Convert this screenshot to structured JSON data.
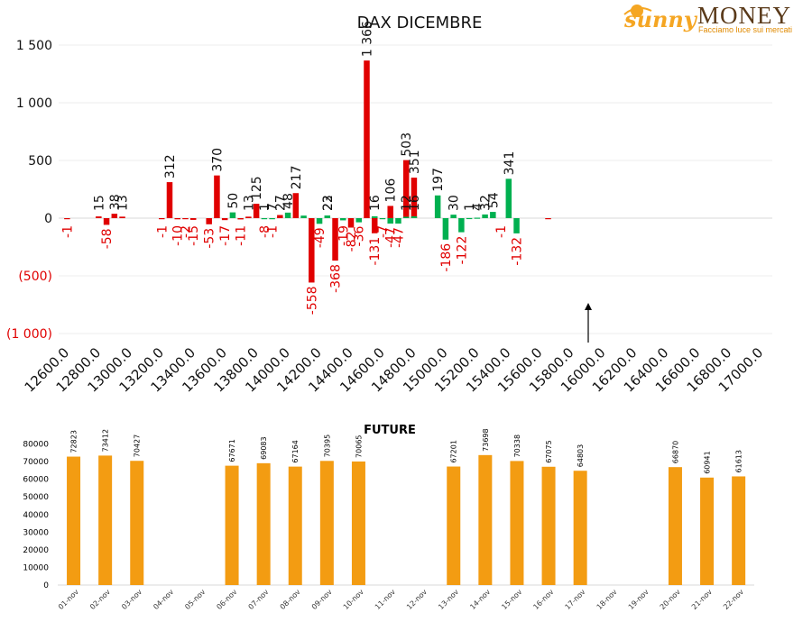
{
  "logo": {
    "word1": "sunny",
    "word2": "MONEY",
    "tagline": "Facciamo luce sui mercati",
    "colors": {
      "sun": "#f5a623",
      "text": "#5a3a1a",
      "accent": "#e08a00"
    }
  },
  "chart_data": [
    {
      "type": "bar",
      "title": "DAX DICEMBRE",
      "xlabel": "",
      "ylabel": "",
      "ylim": [
        -1000,
        1500
      ],
      "yticks": [
        {
          "value": 1500,
          "label": "1 500"
        },
        {
          "value": 1000,
          "label": "1 000"
        },
        {
          "value": 500,
          "label": "500"
        },
        {
          "value": 0,
          "label": "0"
        },
        {
          "value": -500,
          "label": "(500)"
        },
        {
          "value": -1000,
          "label": "(1 000)"
        }
      ],
      "x_start": 12600,
      "x_end": 17000,
      "x_step": 50,
      "x_tick_step": 200,
      "x_tick_format": ".0",
      "grid": true,
      "colors": {
        "positive_calls": "#e00000",
        "negative_label": "#e00000",
        "puts": "#00b050",
        "label_default": "#111111"
      },
      "marker_arrow_strike": 16000,
      "series": [
        {
          "color": "#e00000",
          "points": [
            {
              "x": 12600,
              "y": -1
            },
            {
              "x": 12800,
              "y": 15
            },
            {
              "x": 12850,
              "y": -58
            },
            {
              "x": 12900,
              "y": 38
            },
            {
              "x": 12950,
              "y": 13
            },
            {
              "x": 13200,
              "y": -1
            },
            {
              "x": 13250,
              "y": 312
            },
            {
              "x": 13300,
              "y": -10
            },
            {
              "x": 13350,
              "y": -2
            },
            {
              "x": 13400,
              "y": -15
            },
            {
              "x": 13500,
              "y": -53
            },
            {
              "x": 13550,
              "y": 370
            },
            {
              "x": 13600,
              "y": -17
            },
            {
              "x": 13700,
              "y": -11
            },
            {
              "x": 13750,
              "y": 13
            },
            {
              "x": 13800,
              "y": 125
            },
            {
              "x": 13950,
              "y": 27
            },
            {
              "x": 14050,
              "y": 217
            },
            {
              "x": 14150,
              "y": -558
            },
            {
              "x": 14300,
              "y": -368
            },
            {
              "x": 14400,
              "y": -82
            },
            {
              "x": 14500,
              "y": 1366
            },
            {
              "x": 14550,
              "y": -131
            },
            {
              "x": 14650,
              "y": 106
            },
            {
              "x": 14750,
              "y": 503
            },
            {
              "x": 14800,
              "y": 351
            },
            {
              "x": 15650,
              "y": -1
            }
          ]
        },
        {
          "color": "#00b050",
          "points": [
            {
              "x": 13650,
              "y": 50
            },
            {
              "x": 13850,
              "y": -8
            },
            {
              "x": 13900,
              "y": -1
            },
            {
              "x": 14000,
              "y": 48
            },
            {
              "x": 14100,
              "y": 22
            },
            {
              "x": 14200,
              "y": -49
            },
            {
              "x": 14250,
              "y": 23
            },
            {
              "x": 14350,
              "y": -19
            },
            {
              "x": 14450,
              "y": -36
            },
            {
              "x": 14550,
              "y": 16
            },
            {
              "x": 14600,
              "y": -7
            },
            {
              "x": 14650,
              "y": -47
            },
            {
              "x": 14700,
              "y": -47
            },
            {
              "x": 14750,
              "y": 12
            },
            {
              "x": 14800,
              "y": 16
            },
            {
              "x": 14950,
              "y": 197
            },
            {
              "x": 15000,
              "y": -186
            },
            {
              "x": 15050,
              "y": 30
            },
            {
              "x": 15100,
              "y": -122
            },
            {
              "x": 15150,
              "y": 1
            },
            {
              "x": 15200,
              "y": 4
            },
            {
              "x": 15250,
              "y": 32
            },
            {
              "x": 15300,
              "y": 54
            },
            {
              "x": 15400,
              "y": 341
            },
            {
              "x": 15450,
              "y": -132
            }
          ]
        }
      ],
      "labels": [
        {
          "x": 12600,
          "text": "-1"
        },
        {
          "x": 12800,
          "text": "15"
        },
        {
          "x": 12850,
          "text": "-58"
        },
        {
          "x": 12900,
          "text": "38"
        },
        {
          "x": 12950,
          "text": "13"
        },
        {
          "x": 13200,
          "text": "-1"
        },
        {
          "x": 13250,
          "text": "312"
        },
        {
          "x": 13300,
          "text": "-10"
        },
        {
          "x": 13350,
          "text": "-2"
        },
        {
          "x": 13400,
          "text": "-15"
        },
        {
          "x": 13500,
          "text": "-53"
        },
        {
          "x": 13550,
          "text": "370"
        },
        {
          "x": 13600,
          "text": "-17"
        },
        {
          "x": 13650,
          "text": "50"
        },
        {
          "x": 13700,
          "text": "-11"
        },
        {
          "x": 13750,
          "text": "13"
        },
        {
          "x": 13800,
          "text": "125"
        },
        {
          "x": 13850,
          "text": "-8"
        },
        {
          "x": 13850,
          "text": "1"
        },
        {
          "x": 13900,
          "text": "-1"
        },
        {
          "x": 13900,
          "text": "7"
        },
        {
          "x": 13950,
          "text": "27"
        },
        {
          "x": 14000,
          "text": "48"
        },
        {
          "x": 14050,
          "text": "217"
        },
        {
          "x": 14150,
          "text": "-558"
        },
        {
          "x": 14200,
          "text": "-49"
        },
        {
          "x": 14250,
          "text": "23"
        },
        {
          "x": 14250,
          "text": "22"
        },
        {
          "x": 14300,
          "text": "-368"
        },
        {
          "x": 14350,
          "text": "-19"
        },
        {
          "x": 14400,
          "text": "-82"
        },
        {
          "x": 14450,
          "text": "-36"
        },
        {
          "x": 14500,
          "text": "1 366"
        },
        {
          "x": 14550,
          "text": "16"
        },
        {
          "x": 14550,
          "text": "-131"
        },
        {
          "x": 14600,
          "text": "-7"
        },
        {
          "x": 14650,
          "text": "-47"
        },
        {
          "x": 14650,
          "text": "106"
        },
        {
          "x": 14700,
          "text": "-47"
        },
        {
          "x": 14750,
          "text": "503"
        },
        {
          "x": 14750,
          "text": "12"
        },
        {
          "x": 14800,
          "text": "351"
        },
        {
          "x": 14800,
          "text": "16"
        },
        {
          "x": 14950,
          "text": "197"
        },
        {
          "x": 15000,
          "text": "-186"
        },
        {
          "x": 15050,
          "text": "30"
        },
        {
          "x": 15100,
          "text": "-122"
        },
        {
          "x": 15150,
          "text": "1"
        },
        {
          "x": 15200,
          "text": "4"
        },
        {
          "x": 15250,
          "text": "32"
        },
        {
          "x": 15300,
          "text": "54"
        },
        {
          "x": 15350,
          "text": "-1"
        },
        {
          "x": 15400,
          "text": "341"
        },
        {
          "x": 15450,
          "text": "-132"
        }
      ]
    },
    {
      "type": "bar",
      "title": "FUTURE",
      "xlabel": "",
      "ylabel": "",
      "ylim": [
        0,
        80000
      ],
      "yticks": [
        0,
        10000,
        20000,
        30000,
        40000,
        50000,
        60000,
        70000,
        80000
      ],
      "grid": false,
      "color": "#f39c12",
      "categories": [
        "01-nov",
        "02-nov",
        "03-nov",
        "04-nov",
        "05-nov",
        "06-nov",
        "07-nov",
        "08-nov",
        "09-nov",
        "10-nov",
        "11-nov",
        "12-nov",
        "13-nov",
        "14-nov",
        "15-nov",
        "16-nov",
        "17-nov",
        "18-nov",
        "19-nov",
        "20-nov",
        "21-nov",
        "22-nov"
      ],
      "values": [
        72823,
        73412,
        70427,
        null,
        null,
        67671,
        69083,
        67164,
        70395,
        70065,
        null,
        null,
        67201,
        73698,
        70338,
        67075,
        64803,
        null,
        null,
        66870,
        60941,
        61613
      ]
    }
  ]
}
